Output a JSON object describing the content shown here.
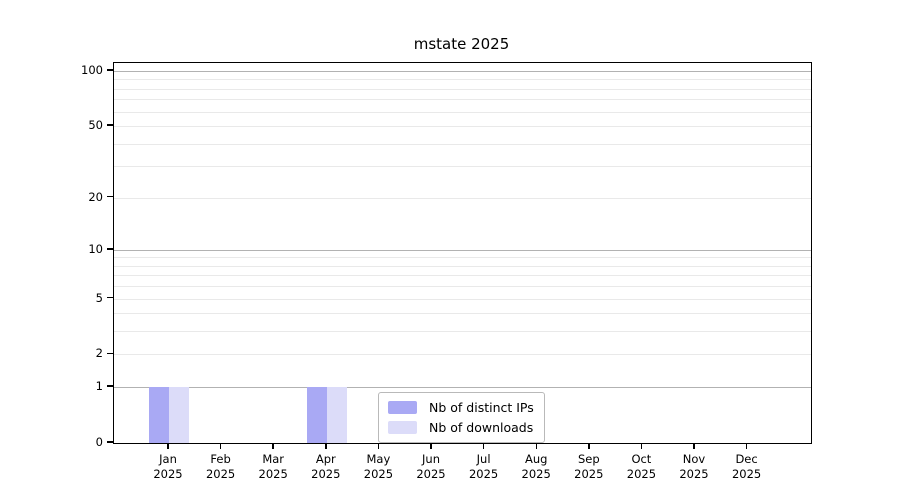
{
  "title": "mstate 2025",
  "chart_data": {
    "type": "bar",
    "title": "mstate 2025",
    "xlabel": "",
    "ylabel": "",
    "year": "2025",
    "categories": [
      "Jan",
      "Feb",
      "Mar",
      "Apr",
      "May",
      "Jun",
      "Jul",
      "Aug",
      "Sep",
      "Oct",
      "Nov",
      "Dec"
    ],
    "series": [
      {
        "name": "Nb of distinct IPs",
        "color": "#a9a9f4",
        "values": [
          1,
          0,
          0,
          1,
          0,
          0,
          0,
          0,
          0,
          0,
          0,
          0
        ]
      },
      {
        "name": "Nb of downloads",
        "color": "#dcdcf9",
        "values": [
          1,
          0,
          0,
          1,
          0,
          0,
          0,
          0,
          0,
          0,
          0,
          0
        ]
      }
    ],
    "y_scale": "log1p",
    "y_ticks": [
      0,
      1,
      2,
      5,
      10,
      20,
      50,
      100
    ],
    "y_major_grid": [
      1,
      10,
      100
    ],
    "y_minor_grid": [
      2,
      3,
      4,
      5,
      6,
      7,
      8,
      9,
      20,
      30,
      40,
      50,
      60,
      70,
      80,
      90
    ],
    "ylim": [
      0,
      111
    ],
    "grid": true,
    "legend_position": "bottom-center",
    "colors": {
      "grid_major": "#b2b2b2",
      "grid_minor": "#e9e9e9",
      "spine": "#000000",
      "text": "#000000"
    }
  }
}
